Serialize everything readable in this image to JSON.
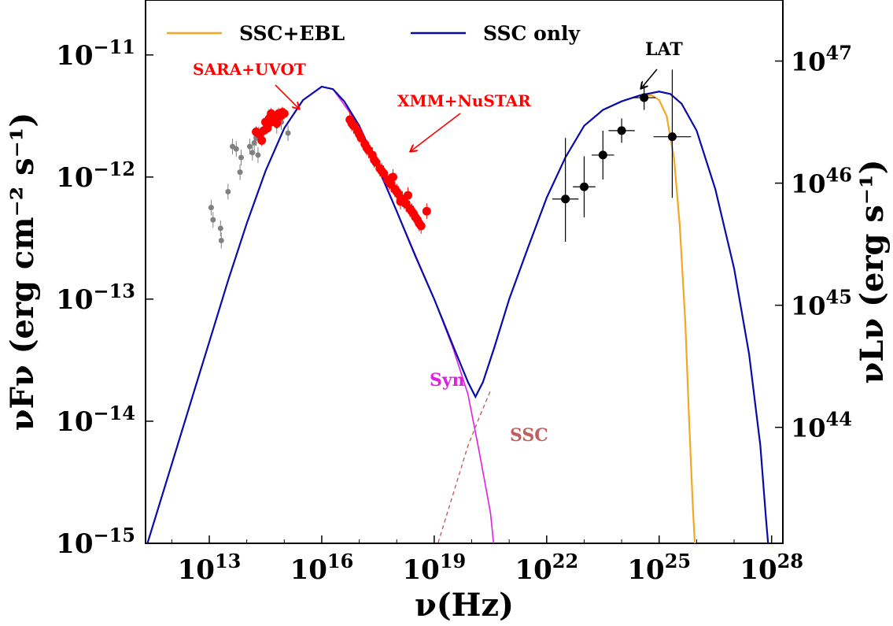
{
  "chart_data": {
    "type": "scatter",
    "xscale": "log",
    "yscale": "log",
    "xlim_log10": [
      11.3,
      28.3
    ],
    "ylim_log10": [
      -15,
      -10.55
    ],
    "right_ylim_log10": [
      43.05,
      47.5
    ],
    "xlabel": "ν(Hz)",
    "ylabel": "νFν (erg cm⁻² s⁻¹)",
    "ylabel_right": "νLν (erg s⁻¹)",
    "x_ticks": [
      {
        "exp": 13,
        "base": "10",
        "sup": "13"
      },
      {
        "exp": 16,
        "base": "10",
        "sup": "16"
      },
      {
        "exp": 19,
        "base": "10",
        "sup": "19"
      },
      {
        "exp": 22,
        "base": "10",
        "sup": "22"
      },
      {
        "exp": 25,
        "base": "10",
        "sup": "25"
      },
      {
        "exp": 28,
        "base": "10",
        "sup": "28"
      }
    ],
    "y_ticks": [
      {
        "exp": -11,
        "base": "10",
        "sup": "−11"
      },
      {
        "exp": -12,
        "base": "10",
        "sup": "−12"
      },
      {
        "exp": -13,
        "base": "10",
        "sup": "−13"
      },
      {
        "exp": -14,
        "base": "10",
        "sup": "−14"
      },
      {
        "exp": -15,
        "base": "10",
        "sup": "−15"
      }
    ],
    "y_ticks_right": [
      {
        "exp": 47,
        "base": "10",
        "sup": "47"
      },
      {
        "exp": 46,
        "base": "10",
        "sup": "46"
      },
      {
        "exp": 45,
        "base": "10",
        "sup": "45"
      },
      {
        "exp": 44,
        "base": "10",
        "sup": "44"
      }
    ],
    "legend": {
      "placement": "top",
      "entries": [
        {
          "label": "SSC+EBL",
          "color": "#f5a623"
        },
        {
          "label": "SSC only",
          "color": "#0a0aa8"
        }
      ]
    },
    "annotations": {
      "sara": "SARA+UVOT",
      "xmm": "XMM+NuSTAR",
      "lat": "LAT",
      "syn": "Syn",
      "ssc": "SSC"
    },
    "colors": {
      "ssc_ebl": "#f5a623",
      "ssc_only": "#0a0aa8",
      "syn": "#e020e0",
      "ssc_component": "#c06060",
      "optical_x": "#ff0000",
      "archival": "#808080",
      "lat": "#000000"
    },
    "series": [
      {
        "name": "SSC only",
        "kind": "line",
        "points": [
          [
            11.3,
            -15.05
          ],
          [
            12.0,
            -14.35
          ],
          [
            12.6,
            -13.75
          ],
          [
            13.0,
            -13.35
          ],
          [
            13.5,
            -12.85
          ],
          [
            14.0,
            -12.38
          ],
          [
            14.5,
            -11.95
          ],
          [
            15.0,
            -11.6
          ],
          [
            15.5,
            -11.37
          ],
          [
            16.0,
            -11.26
          ],
          [
            16.3,
            -11.28
          ],
          [
            16.6,
            -11.38
          ],
          [
            17.0,
            -11.58
          ],
          [
            17.5,
            -11.92
          ],
          [
            18.0,
            -12.28
          ],
          [
            18.5,
            -12.65
          ],
          [
            19.0,
            -13.0
          ],
          [
            19.5,
            -13.38
          ],
          [
            19.9,
            -13.68
          ],
          [
            20.1,
            -13.8
          ],
          [
            20.3,
            -13.68
          ],
          [
            20.6,
            -13.4
          ],
          [
            21.0,
            -13.0
          ],
          [
            21.5,
            -12.58
          ],
          [
            22.0,
            -12.17
          ],
          [
            22.5,
            -11.84
          ],
          [
            23.0,
            -11.58
          ],
          [
            23.5,
            -11.45
          ],
          [
            24.0,
            -11.38
          ],
          [
            24.5,
            -11.33
          ],
          [
            25.0,
            -11.3
          ],
          [
            25.3,
            -11.32
          ],
          [
            25.6,
            -11.4
          ],
          [
            26.0,
            -11.62
          ],
          [
            26.5,
            -12.1
          ],
          [
            27.0,
            -12.75
          ],
          [
            27.4,
            -13.45
          ],
          [
            27.7,
            -14.2
          ],
          [
            27.85,
            -14.8
          ],
          [
            27.92,
            -15.05
          ]
        ]
      },
      {
        "name": "SSC+EBL",
        "kind": "line",
        "points": [
          [
            24.5,
            -11.34
          ],
          [
            24.8,
            -11.33
          ],
          [
            25.0,
            -11.37
          ],
          [
            25.2,
            -11.5
          ],
          [
            25.4,
            -11.85
          ],
          [
            25.55,
            -12.4
          ],
          [
            25.7,
            -13.2
          ],
          [
            25.8,
            -14.0
          ],
          [
            25.9,
            -14.7
          ],
          [
            25.96,
            -15.05
          ]
        ]
      },
      {
        "name": "Syn",
        "kind": "line",
        "points": [
          [
            16.3,
            -11.28
          ],
          [
            17.0,
            -11.58
          ],
          [
            18.0,
            -12.28
          ],
          [
            19.0,
            -13.0
          ],
          [
            19.5,
            -13.4
          ],
          [
            19.9,
            -13.78
          ],
          [
            20.2,
            -14.25
          ],
          [
            20.5,
            -14.75
          ],
          [
            20.6,
            -15.05
          ]
        ]
      },
      {
        "name": "SSC",
        "kind": "line",
        "points": [
          [
            19.05,
            -15.05
          ],
          [
            19.3,
            -14.8
          ],
          [
            19.6,
            -14.5
          ],
          [
            19.9,
            -14.2
          ],
          [
            20.2,
            -13.97
          ],
          [
            20.5,
            -13.75
          ]
        ]
      },
      {
        "name": "SARA+UVOT",
        "kind": "points",
        "points": [
          [
            14.25,
            -11.63
          ],
          [
            14.35,
            -11.65
          ],
          [
            14.45,
            -11.62
          ],
          [
            14.5,
            -11.55
          ],
          [
            14.55,
            -11.58
          ],
          [
            14.6,
            -11.52
          ],
          [
            14.65,
            -11.55
          ],
          [
            14.7,
            -11.5
          ],
          [
            14.75,
            -11.52
          ],
          [
            14.8,
            -11.5
          ],
          [
            14.85,
            -11.48
          ],
          [
            14.9,
            -11.5
          ],
          [
            14.95,
            -11.47
          ],
          [
            15.0,
            -11.48
          ],
          [
            14.4,
            -11.7
          ],
          [
            14.55,
            -11.6
          ],
          [
            14.65,
            -11.48
          ],
          [
            14.8,
            -11.56
          ]
        ]
      },
      {
        "name": "XMM+NuSTAR",
        "kind": "points",
        "points": [
          [
            16.75,
            -11.53
          ],
          [
            16.85,
            -11.58
          ],
          [
            16.95,
            -11.62
          ],
          [
            17.05,
            -11.68
          ],
          [
            17.15,
            -11.73
          ],
          [
            17.25,
            -11.78
          ],
          [
            17.35,
            -11.82
          ],
          [
            17.45,
            -11.88
          ],
          [
            17.55,
            -11.93
          ],
          [
            17.65,
            -11.97
          ],
          [
            17.75,
            -12.02
          ],
          [
            17.85,
            -12.06
          ],
          [
            17.95,
            -12.1
          ],
          [
            18.05,
            -12.14
          ],
          [
            18.15,
            -12.18
          ],
          [
            18.25,
            -12.22
          ],
          [
            18.35,
            -12.26
          ],
          [
            18.45,
            -12.3
          ],
          [
            18.55,
            -12.35
          ],
          [
            18.65,
            -12.4
          ],
          [
            18.8,
            -12.28
          ],
          [
            16.8,
            -11.56
          ],
          [
            17.0,
            -11.65
          ],
          [
            17.2,
            -11.76
          ],
          [
            17.4,
            -11.86
          ],
          [
            17.6,
            -11.95
          ],
          [
            17.8,
            -12.04
          ],
          [
            18.0,
            -12.12
          ],
          [
            18.2,
            -12.2
          ],
          [
            18.4,
            -12.28
          ],
          [
            18.6,
            -12.38
          ],
          [
            17.9,
            -12.0
          ],
          [
            18.1,
            -12.2
          ],
          [
            18.3,
            -12.15
          ],
          [
            18.5,
            -12.33
          ]
        ]
      },
      {
        "name": "archival",
        "kind": "points",
        "points": [
          [
            13.05,
            -12.25
          ],
          [
            13.1,
            -12.35
          ],
          [
            13.3,
            -12.42
          ],
          [
            13.32,
            -12.52
          ],
          [
            13.5,
            -12.12
          ],
          [
            13.62,
            -11.75
          ],
          [
            13.72,
            -11.77
          ],
          [
            13.82,
            -11.96
          ],
          [
            13.85,
            -11.84
          ],
          [
            14.08,
            -11.75
          ],
          [
            14.15,
            -11.8
          ],
          [
            14.2,
            -11.72
          ],
          [
            14.25,
            -11.68
          ],
          [
            14.3,
            -11.82
          ],
          [
            14.32,
            -11.65
          ],
          [
            14.8,
            -11.58
          ],
          [
            14.92,
            -11.55
          ],
          [
            15.1,
            -11.64
          ]
        ]
      },
      {
        "name": "LAT",
        "kind": "points",
        "points": [
          [
            22.5,
            -12.18
          ],
          [
            23.0,
            -12.08
          ],
          [
            23.5,
            -11.82
          ],
          [
            24.0,
            -11.62
          ],
          [
            24.6,
            -11.35
          ],
          [
            25.35,
            -11.67
          ]
        ]
      }
    ]
  }
}
